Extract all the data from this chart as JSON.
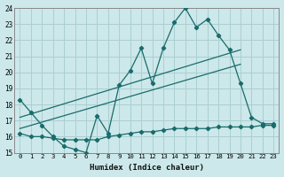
{
  "xlabel": "Humidex (Indice chaleur)",
  "background_color": "#cce8ea",
  "grid_color": "#aacfd2",
  "line_color": "#1a6b6b",
  "xlim": [
    -0.5,
    23.5
  ],
  "ylim": [
    15,
    24
  ],
  "xticks": [
    0,
    1,
    2,
    3,
    4,
    5,
    6,
    7,
    8,
    9,
    10,
    11,
    12,
    13,
    14,
    15,
    16,
    17,
    18,
    19,
    20,
    21,
    22,
    23
  ],
  "yticks": [
    15,
    16,
    17,
    18,
    19,
    20,
    21,
    22,
    23,
    24
  ],
  "series1_x": [
    0,
    1,
    2,
    3,
    4,
    5,
    6,
    7,
    8,
    9,
    10,
    11,
    12,
    13,
    14,
    15,
    16,
    17,
    18,
    19,
    20,
    21,
    22,
    23
  ],
  "series1_y": [
    18.3,
    17.5,
    16.7,
    16.0,
    15.4,
    15.2,
    15.0,
    17.3,
    16.2,
    19.2,
    20.1,
    21.5,
    19.3,
    21.5,
    23.1,
    24.0,
    22.8,
    23.3,
    22.3,
    21.4,
    19.3,
    17.2,
    16.8,
    16.8
  ],
  "series2_x": [
    0,
    1,
    2,
    3,
    4,
    5,
    6,
    7,
    8,
    9,
    10,
    11,
    12,
    13,
    14,
    15,
    16,
    17,
    18,
    19,
    20,
    21,
    22,
    23
  ],
  "series2_y": [
    16.2,
    16.0,
    16.0,
    15.9,
    15.8,
    15.8,
    15.8,
    15.8,
    16.0,
    16.1,
    16.2,
    16.3,
    16.3,
    16.4,
    16.5,
    16.5,
    16.5,
    16.5,
    16.6,
    16.6,
    16.6,
    16.6,
    16.7,
    16.7
  ],
  "series3_x": [
    0,
    20
  ],
  "series3_y": [
    17.2,
    21.4
  ],
  "series4_x": [
    0,
    20
  ],
  "series4_y": [
    16.5,
    20.5
  ]
}
